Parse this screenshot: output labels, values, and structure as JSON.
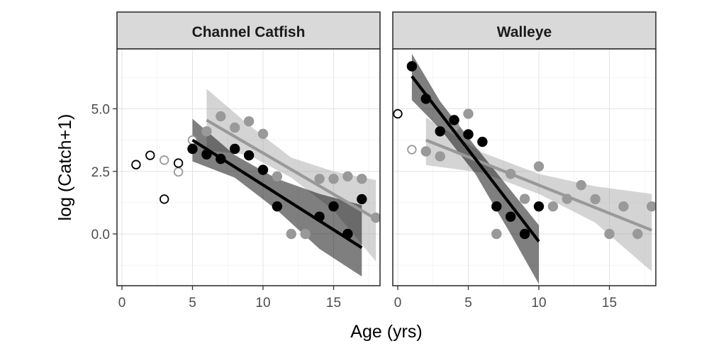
{
  "chart_data": {
    "type": "scatter",
    "xlabel": "Age (yrs)",
    "ylabel": "log (Catch+1)",
    "xlim": [
      -0.5,
      18.5
    ],
    "ylim": [
      -2.0,
      7.5
    ],
    "x_ticks": [
      0,
      5,
      10,
      15
    ],
    "y_ticks": [
      0.0,
      2.5,
      5.0
    ],
    "y_tick_labels": [
      "0.0",
      "2.5",
      "5.0"
    ],
    "grid": true,
    "colors": {
      "dark": "#000000",
      "light": "#999999",
      "panel_strip": "#d9d9d9",
      "panel_border": "#333333"
    },
    "panels": [
      {
        "title": "Channel Catfish",
        "series": [
          {
            "color": "#999999",
            "unused": [
              [
                5,
                3.75
              ],
              [
                4,
                2.48
              ],
              [
                3,
                2.95
              ]
            ],
            "used": [
              [
                6,
                4.1
              ],
              [
                7,
                4.7
              ],
              [
                8,
                4.25
              ],
              [
                9,
                4.5
              ],
              [
                10,
                4.0
              ],
              [
                11,
                2.3
              ],
              [
                12,
                0.0
              ],
              [
                13,
                0.0
              ],
              [
                14,
                2.2
              ],
              [
                15,
                2.2
              ],
              [
                16,
                2.3
              ],
              [
                17,
                2.2
              ],
              [
                18,
                0.65
              ]
            ],
            "fit": [
              [
                6,
                4.55
              ],
              [
                18,
                0.6
              ]
            ],
            "band": [
              [
                6,
                5.8,
                3.35
              ],
              [
                9,
                4.35,
                3.15
              ],
              [
                12,
                3.05,
                2.25
              ],
              [
                15,
                2.5,
                0.95
              ],
              [
                18,
                2.15,
                -1.1
              ]
            ]
          },
          {
            "color": "#000000",
            "unused": [
              [
                1,
                2.77
              ],
              [
                2,
                3.14
              ],
              [
                3,
                1.39
              ],
              [
                4,
                2.83
              ]
            ],
            "used": [
              [
                5,
                3.4
              ],
              [
                6,
                3.18
              ],
              [
                7,
                3.0
              ],
              [
                8,
                3.4
              ],
              [
                9,
                3.14
              ],
              [
                10,
                2.56
              ],
              [
                11,
                1.1
              ],
              [
                14,
                0.69
              ],
              [
                15,
                1.1
              ],
              [
                16,
                0.0
              ],
              [
                17,
                1.39
              ]
            ],
            "fit": [
              [
                5,
                3.75
              ],
              [
                17,
                -0.55
              ]
            ],
            "band": [
              [
                5,
                4.6,
                2.9
              ],
              [
                8,
                3.15,
                2.25
              ],
              [
                11,
                2.2,
                0.95
              ],
              [
                14,
                1.6,
                -0.6
              ],
              [
                17,
                1.15,
                -1.7
              ]
            ]
          }
        ]
      },
      {
        "title": "Walleye",
        "series": [
          {
            "color": "#999999",
            "unused": [
              [
                1,
                3.37
              ]
            ],
            "used": [
              [
                2,
                3.3
              ],
              [
                3,
                3.1
              ],
              [
                4,
                4.3
              ],
              [
                5,
                4.8
              ],
              [
                7,
                0.0
              ],
              [
                8,
                2.4
              ],
              [
                9,
                1.4
              ],
              [
                10,
                2.7
              ],
              [
                11,
                1.1
              ],
              [
                12,
                1.4
              ],
              [
                13,
                1.95
              ],
              [
                14,
                1.39
              ],
              [
                15,
                0.0
              ],
              [
                16,
                1.1
              ],
              [
                17,
                0.0
              ],
              [
                18,
                1.1
              ]
            ],
            "fit": [
              [
                2,
                3.75
              ],
              [
                18,
                0.15
              ]
            ],
            "band": [
              [
                2,
                4.65,
                2.75
              ],
              [
                6,
                3.25,
                2.45
              ],
              [
                10,
                2.4,
                1.6
              ],
              [
                14,
                1.9,
                0.45
              ],
              [
                18,
                1.6,
                -1.5
              ]
            ]
          },
          {
            "color": "#000000",
            "unused": [
              [
                0,
                4.8
              ]
            ],
            "used": [
              [
                1,
                6.7
              ],
              [
                2,
                5.4
              ],
              [
                3,
                4.1
              ],
              [
                4,
                4.55
              ],
              [
                5,
                3.98
              ],
              [
                6,
                3.68
              ],
              [
                7,
                1.1
              ],
              [
                8,
                0.69
              ],
              [
                9,
                0.0
              ],
              [
                10,
                1.1
              ]
            ],
            "fit": [
              [
                1,
                6.3
              ],
              [
                10,
                -0.3
              ]
            ],
            "band": [
              [
                1,
                7.2,
                5.35
              ],
              [
                3,
                5.3,
                4.2
              ],
              [
                5.5,
                3.5,
                2.4
              ],
              [
                8,
                1.75,
                0.0
              ],
              [
                10,
                0.35,
                -2.0
              ]
            ]
          }
        ]
      }
    ]
  }
}
